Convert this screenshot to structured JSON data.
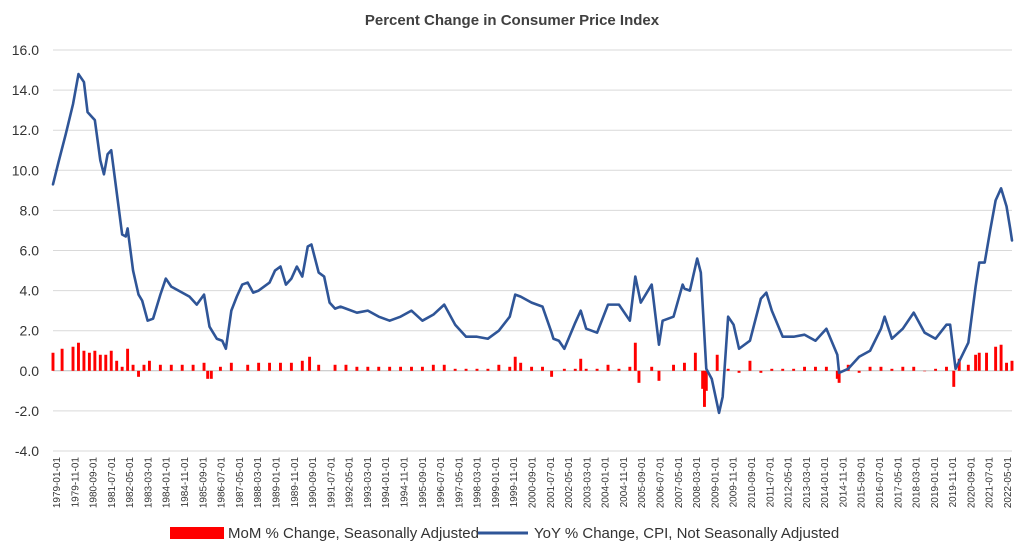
{
  "chart_data": {
    "type": "bar+line",
    "title": "Percent Change in Consumer Price Index",
    "xlabel": "",
    "ylabel": "",
    "ylim": [
      -4.0,
      16.0
    ],
    "y_ticks": [
      "16.0",
      "14.0",
      "12.0",
      "10.0",
      "8.0",
      "6.0",
      "4.0",
      "2.0",
      "0.0",
      "-2.0",
      "-4.0"
    ],
    "y_tick_values": [
      16,
      14,
      12,
      10,
      8,
      6,
      4,
      2,
      0,
      -2,
      -4
    ],
    "x_range": [
      "1979-01",
      "2022-12"
    ],
    "x_ticks": [
      "1979-01-01",
      "1979-11-01",
      "1980-09-01",
      "1981-07-01",
      "1982-05-01",
      "1983-03-01",
      "1984-01-01",
      "1984-11-01",
      "1985-09-01",
      "1986-07-01",
      "1987-05-01",
      "1988-03-01",
      "1989-01-01",
      "1989-11-01",
      "1990-09-01",
      "1991-07-01",
      "1992-05-01",
      "1993-03-01",
      "1994-01-01",
      "1994-11-01",
      "1995-09-01",
      "1996-07-01",
      "1997-05-01",
      "1998-03-01",
      "1999-01-01",
      "1999-11-01",
      "2000-09-01",
      "2001-07-01",
      "2002-05-01",
      "2003-03-01",
      "2004-01-01",
      "2004-11-01",
      "2005-09-01",
      "2006-07-01",
      "2007-05-01",
      "2008-03-01",
      "2009-01-01",
      "2009-11-01",
      "2010-09-01",
      "2011-07-01",
      "2012-05-01",
      "2013-03-01",
      "2014-01-01",
      "2014-11-01",
      "2015-09-01",
      "2016-07-01",
      "2017-05-01",
      "2018-03-01",
      "2019-01-01",
      "2019-11-01",
      "2020-09-01",
      "2021-07-01",
      "2022-05-01"
    ],
    "grid": true,
    "legend_position": "bottom",
    "series": [
      {
        "name": "MoM % Change, Seasonally Adjusted",
        "type": "bar",
        "color": "#ff0000",
        "points": [
          [
            "1979-01",
            0.9
          ],
          [
            "1979-06",
            1.1
          ],
          [
            "1979-12",
            1.2
          ],
          [
            "1980-03",
            1.4
          ],
          [
            "1980-06",
            1.0
          ],
          [
            "1980-09",
            0.9
          ],
          [
            "1980-12",
            1.0
          ],
          [
            "1981-03",
            0.8
          ],
          [
            "1981-06",
            0.8
          ],
          [
            "1981-09",
            1.0
          ],
          [
            "1981-12",
            0.5
          ],
          [
            "1982-03",
            0.2
          ],
          [
            "1982-06",
            1.1
          ],
          [
            "1982-09",
            0.3
          ],
          [
            "1982-12",
            -0.3
          ],
          [
            "1983-03",
            0.3
          ],
          [
            "1983-06",
            0.5
          ],
          [
            "1983-12",
            0.3
          ],
          [
            "1984-06",
            0.3
          ],
          [
            "1984-12",
            0.3
          ],
          [
            "1985-06",
            0.3
          ],
          [
            "1985-12",
            0.4
          ],
          [
            "1986-02",
            -0.4
          ],
          [
            "1986-04",
            -0.4
          ],
          [
            "1986-09",
            0.2
          ],
          [
            "1987-03",
            0.4
          ],
          [
            "1987-12",
            0.3
          ],
          [
            "1988-06",
            0.4
          ],
          [
            "1988-12",
            0.4
          ],
          [
            "1989-06",
            0.4
          ],
          [
            "1989-12",
            0.4
          ],
          [
            "1990-06",
            0.5
          ],
          [
            "1990-10",
            0.7
          ],
          [
            "1991-03",
            0.3
          ],
          [
            "1991-12",
            0.3
          ],
          [
            "1992-06",
            0.3
          ],
          [
            "1992-12",
            0.2
          ],
          [
            "1993-06",
            0.2
          ],
          [
            "1993-12",
            0.2
          ],
          [
            "1994-06",
            0.2
          ],
          [
            "1994-12",
            0.2
          ],
          [
            "1995-06",
            0.2
          ],
          [
            "1995-12",
            0.2
          ],
          [
            "1996-06",
            0.3
          ],
          [
            "1996-12",
            0.3
          ],
          [
            "1997-06",
            0.1
          ],
          [
            "1997-12",
            0.1
          ],
          [
            "1998-06",
            0.1
          ],
          [
            "1998-12",
            0.1
          ],
          [
            "1999-06",
            0.3
          ],
          [
            "1999-12",
            0.2
          ],
          [
            "2000-03",
            0.7
          ],
          [
            "2000-06",
            0.4
          ],
          [
            "2000-12",
            0.2
          ],
          [
            "2001-06",
            0.2
          ],
          [
            "2001-11",
            -0.3
          ],
          [
            "2002-06",
            0.1
          ],
          [
            "2002-12",
            0.1
          ],
          [
            "2003-03",
            0.6
          ],
          [
            "2003-06",
            0.1
          ],
          [
            "2003-12",
            0.1
          ],
          [
            "2004-06",
            0.3
          ],
          [
            "2004-12",
            0.1
          ],
          [
            "2005-06",
            0.2
          ],
          [
            "2005-09",
            1.4
          ],
          [
            "2005-11",
            -0.6
          ],
          [
            "2006-06",
            0.2
          ],
          [
            "2006-10",
            -0.5
          ],
          [
            "2007-06",
            0.3
          ],
          [
            "2007-12",
            0.4
          ],
          [
            "2008-06",
            0.9
          ],
          [
            "2008-10",
            -0.9
          ],
          [
            "2008-11",
            -1.8
          ],
          [
            "2008-12",
            -1.0
          ],
          [
            "2009-06",
            0.8
          ],
          [
            "2009-12",
            0.1
          ],
          [
            "2010-06",
            -0.1
          ],
          [
            "2010-12",
            0.5
          ],
          [
            "2011-06",
            -0.1
          ],
          [
            "2011-12",
            0.1
          ],
          [
            "2012-06",
            0.1
          ],
          [
            "2012-12",
            0.1
          ],
          [
            "2013-06",
            0.2
          ],
          [
            "2013-12",
            0.2
          ],
          [
            "2014-06",
            0.2
          ],
          [
            "2014-12",
            -0.4
          ],
          [
            "2015-01",
            -0.6
          ],
          [
            "2015-06",
            0.3
          ],
          [
            "2015-12",
            -0.1
          ],
          [
            "2016-06",
            0.2
          ],
          [
            "2016-12",
            0.2
          ],
          [
            "2017-06",
            0.1
          ],
          [
            "2017-12",
            0.2
          ],
          [
            "2018-06",
            0.2
          ],
          [
            "2018-12",
            0.0
          ],
          [
            "2019-06",
            0.1
          ],
          [
            "2019-12",
            0.2
          ],
          [
            "2020-04",
            -0.8
          ],
          [
            "2020-07",
            0.6
          ],
          [
            "2020-12",
            0.3
          ],
          [
            "2021-04",
            0.8
          ],
          [
            "2021-06",
            0.9
          ],
          [
            "2021-10",
            0.9
          ],
          [
            "2022-03",
            1.2
          ],
          [
            "2022-06",
            1.3
          ],
          [
            "2022-09",
            0.4
          ],
          [
            "2022-12",
            0.5
          ]
        ]
      },
      {
        "name": "YoY % Change, CPI, Not Seasonally Adjusted",
        "type": "line",
        "color": "#2f5597",
        "points": [
          [
            "1979-01",
            9.3
          ],
          [
            "1979-04",
            10.4
          ],
          [
            "1979-08",
            11.8
          ],
          [
            "1979-12",
            13.3
          ],
          [
            "1980-03",
            14.8
          ],
          [
            "1980-06",
            14.4
          ],
          [
            "1980-08",
            12.9
          ],
          [
            "1980-12",
            12.5
          ],
          [
            "1981-03",
            10.5
          ],
          [
            "1981-05",
            9.8
          ],
          [
            "1981-07",
            10.8
          ],
          [
            "1981-09",
            11.0
          ],
          [
            "1981-12",
            8.9
          ],
          [
            "1982-03",
            6.8
          ],
          [
            "1982-05",
            6.7
          ],
          [
            "1982-06",
            7.1
          ],
          [
            "1982-09",
            5.0
          ],
          [
            "1982-12",
            3.8
          ],
          [
            "1983-02",
            3.5
          ],
          [
            "1983-05",
            2.5
          ],
          [
            "1983-08",
            2.6
          ],
          [
            "1983-12",
            3.8
          ],
          [
            "1984-03",
            4.6
          ],
          [
            "1984-06",
            4.2
          ],
          [
            "1984-12",
            3.9
          ],
          [
            "1985-04",
            3.7
          ],
          [
            "1985-08",
            3.3
          ],
          [
            "1985-12",
            3.8
          ],
          [
            "1986-03",
            2.2
          ],
          [
            "1986-07",
            1.6
          ],
          [
            "1986-10",
            1.5
          ],
          [
            "1986-12",
            1.1
          ],
          [
            "1987-03",
            3.0
          ],
          [
            "1987-06",
            3.7
          ],
          [
            "1987-09",
            4.3
          ],
          [
            "1987-12",
            4.4
          ],
          [
            "1988-03",
            3.9
          ],
          [
            "1988-06",
            4.0
          ],
          [
            "1988-12",
            4.4
          ],
          [
            "1989-03",
            5.0
          ],
          [
            "1989-06",
            5.2
          ],
          [
            "1989-09",
            4.3
          ],
          [
            "1989-12",
            4.6
          ],
          [
            "1990-03",
            5.2
          ],
          [
            "1990-06",
            4.7
          ],
          [
            "1990-09",
            6.2
          ],
          [
            "1990-11",
            6.3
          ],
          [
            "1991-03",
            4.9
          ],
          [
            "1991-06",
            4.7
          ],
          [
            "1991-09",
            3.4
          ],
          [
            "1991-12",
            3.1
          ],
          [
            "1992-03",
            3.2
          ],
          [
            "1992-06",
            3.1
          ],
          [
            "1992-12",
            2.9
          ],
          [
            "1993-06",
            3.0
          ],
          [
            "1993-12",
            2.7
          ],
          [
            "1994-06",
            2.5
          ],
          [
            "1994-12",
            2.7
          ],
          [
            "1995-06",
            3.0
          ],
          [
            "1995-12",
            2.5
          ],
          [
            "1996-06",
            2.8
          ],
          [
            "1996-12",
            3.3
          ],
          [
            "1997-06",
            2.3
          ],
          [
            "1997-12",
            1.7
          ],
          [
            "1998-06",
            1.7
          ],
          [
            "1998-12",
            1.6
          ],
          [
            "1999-06",
            2.0
          ],
          [
            "1999-12",
            2.7
          ],
          [
            "2000-03",
            3.8
          ],
          [
            "2000-06",
            3.7
          ],
          [
            "2000-12",
            3.4
          ],
          [
            "2001-06",
            3.2
          ],
          [
            "2001-11",
            1.9
          ],
          [
            "2001-12",
            1.6
          ],
          [
            "2002-03",
            1.5
          ],
          [
            "2002-06",
            1.1
          ],
          [
            "2002-12",
            2.4
          ],
          [
            "2003-03",
            3.0
          ],
          [
            "2003-06",
            2.1
          ],
          [
            "2003-12",
            1.9
          ],
          [
            "2004-06",
            3.3
          ],
          [
            "2004-12",
            3.3
          ],
          [
            "2005-06",
            2.5
          ],
          [
            "2005-09",
            4.7
          ],
          [
            "2005-12",
            3.4
          ],
          [
            "2006-06",
            4.3
          ],
          [
            "2006-10",
            1.3
          ],
          [
            "2006-12",
            2.5
          ],
          [
            "2007-06",
            2.7
          ],
          [
            "2007-11",
            4.3
          ],
          [
            "2007-12",
            4.1
          ],
          [
            "2008-03",
            4.0
          ],
          [
            "2008-07",
            5.6
          ],
          [
            "2008-09",
            4.9
          ],
          [
            "2008-12",
            0.1
          ],
          [
            "2009-03",
            -0.4
          ],
          [
            "2009-07",
            -2.1
          ],
          [
            "2009-09",
            -1.3
          ],
          [
            "2009-12",
            2.7
          ],
          [
            "2010-03",
            2.3
          ],
          [
            "2010-06",
            1.1
          ],
          [
            "2010-12",
            1.5
          ],
          [
            "2011-06",
            3.6
          ],
          [
            "2011-09",
            3.9
          ],
          [
            "2011-12",
            3.0
          ],
          [
            "2012-06",
            1.7
          ],
          [
            "2012-12",
            1.7
          ],
          [
            "2013-06",
            1.8
          ],
          [
            "2013-12",
            1.5
          ],
          [
            "2014-06",
            2.1
          ],
          [
            "2014-12",
            0.8
          ],
          [
            "2015-01",
            -0.1
          ],
          [
            "2015-06",
            0.1
          ],
          [
            "2015-12",
            0.7
          ],
          [
            "2016-06",
            1.0
          ],
          [
            "2016-12",
            2.1
          ],
          [
            "2017-02",
            2.7
          ],
          [
            "2017-06",
            1.6
          ],
          [
            "2017-12",
            2.1
          ],
          [
            "2018-06",
            2.9
          ],
          [
            "2018-12",
            1.9
          ],
          [
            "2019-06",
            1.6
          ],
          [
            "2019-12",
            2.3
          ],
          [
            "2020-02",
            2.3
          ],
          [
            "2020-05",
            0.1
          ],
          [
            "2020-12",
            1.4
          ],
          [
            "2021-04",
            4.2
          ],
          [
            "2021-06",
            5.4
          ],
          [
            "2021-09",
            5.4
          ],
          [
            "2021-12",
            7.0
          ],
          [
            "2022-03",
            8.5
          ],
          [
            "2022-06",
            9.1
          ],
          [
            "2022-09",
            8.2
          ],
          [
            "2022-11",
            7.1
          ],
          [
            "2022-12",
            6.5
          ]
        ]
      }
    ]
  }
}
